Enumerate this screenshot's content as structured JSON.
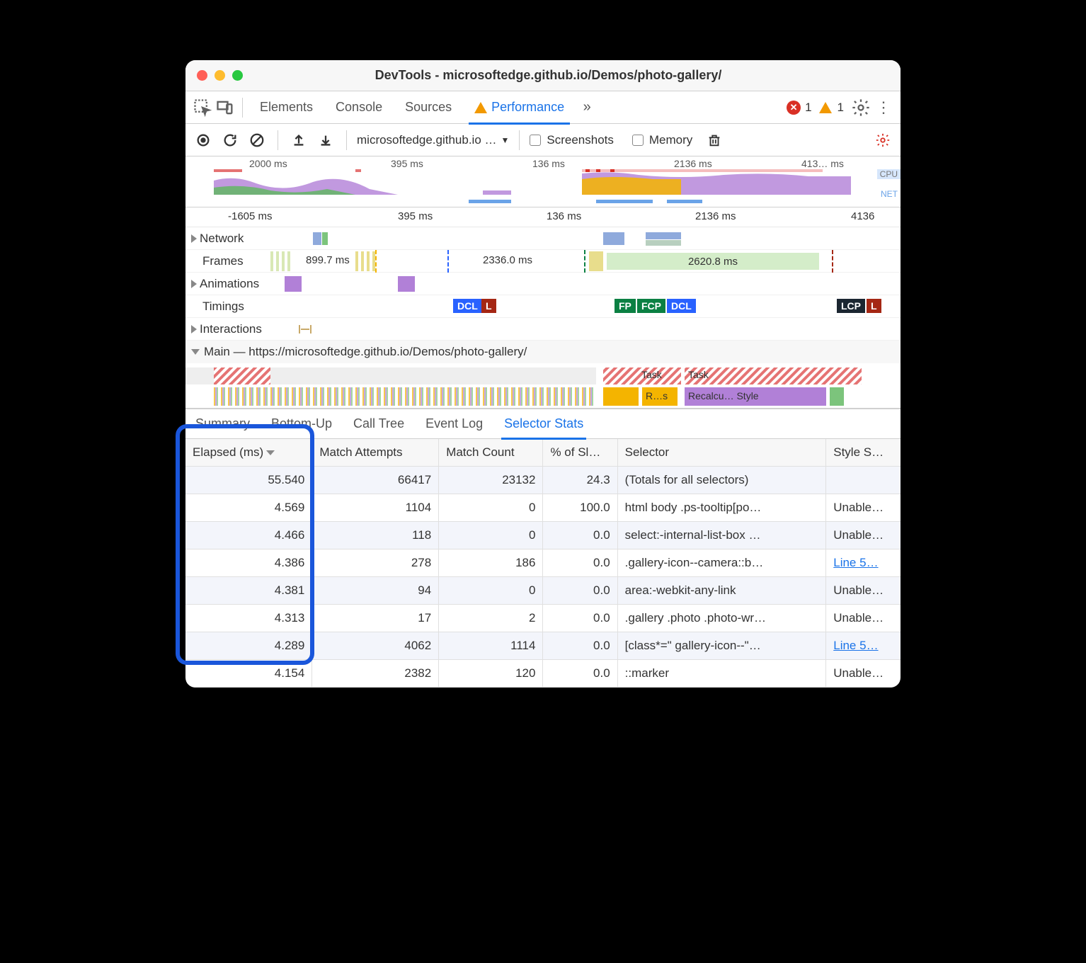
{
  "window": {
    "title": "DevTools - microsoftedge.github.io/Demos/photo-gallery/"
  },
  "tabs": {
    "elements": "Elements",
    "console": "Console",
    "sources": "Sources",
    "performance": "Performance",
    "errors": "1",
    "warnings": "1"
  },
  "toolbar": {
    "url": "microsoftedge.github.io …",
    "screenshots": "Screenshots",
    "memory": "Memory"
  },
  "overview": {
    "ticks": [
      "2000 ms",
      "395 ms",
      "136 ms",
      "2136 ms",
      "413… ms"
    ],
    "cpu_label": "CPU",
    "net_label": "NET"
  },
  "ruler": {
    "ticks": [
      "-1605 ms",
      "395 ms",
      "136 ms",
      "2136 ms",
      "4136"
    ]
  },
  "tracks": {
    "network": "Network",
    "frames": "Frames",
    "frames_vals": [
      "899.7 ms",
      "2336.0 ms",
      "2620.8 ms"
    ],
    "animations": "Animations",
    "timings": "Timings",
    "timing_badges": [
      "DCL",
      "L",
      "FP",
      "FCP",
      "DCL",
      "LCP",
      "L"
    ],
    "interactions": "Interactions",
    "main": "Main — https://microsoftedge.github.io/Demos/photo-gallery/",
    "flame_labels": [
      "Task",
      "Task",
      "R…s",
      "Recalcu… Style"
    ]
  },
  "detail_tabs": {
    "summary": "Summary",
    "bottomup": "Bottom-Up",
    "calltree": "Call Tree",
    "eventlog": "Event Log",
    "selector": "Selector Stats"
  },
  "table": {
    "headers": {
      "elapsed": "Elapsed (ms)",
      "attempts": "Match Attempts",
      "count": "Match Count",
      "pct": "% of Sl…",
      "selector": "Selector",
      "sheet": "Style S…"
    },
    "rows": [
      {
        "elapsed": "55.540",
        "attempts": "66417",
        "count": "23132",
        "pct": "24.3",
        "selector": "(Totals for all selectors)",
        "sheet": ""
      },
      {
        "elapsed": "4.569",
        "attempts": "1104",
        "count": "0",
        "pct": "100.0",
        "selector": "html body .ps-tooltip[po…",
        "sheet": "Unable…"
      },
      {
        "elapsed": "4.466",
        "attempts": "118",
        "count": "0",
        "pct": "0.0",
        "selector": "select:-internal-list-box …",
        "sheet": "Unable…"
      },
      {
        "elapsed": "4.386",
        "attempts": "278",
        "count": "186",
        "pct": "0.0",
        "selector": ".gallery-icon--camera::b…",
        "sheet": "Line 5…",
        "link": true
      },
      {
        "elapsed": "4.381",
        "attempts": "94",
        "count": "0",
        "pct": "0.0",
        "selector": "area:-webkit-any-link",
        "sheet": "Unable…"
      },
      {
        "elapsed": "4.313",
        "attempts": "17",
        "count": "2",
        "pct": "0.0",
        "selector": ".gallery .photo .photo-wr…",
        "sheet": "Unable…"
      },
      {
        "elapsed": "4.289",
        "attempts": "4062",
        "count": "1114",
        "pct": "0.0",
        "selector": "[class*=\" gallery-icon--\"…",
        "sheet": "Line 5…",
        "link": true
      },
      {
        "elapsed": "4.154",
        "attempts": "2382",
        "count": "120",
        "pct": "0.0",
        "selector": "::marker",
        "sheet": "Unable…"
      }
    ]
  },
  "colors": {
    "accent": "#1a73e8",
    "highlight_border": "#1a56db",
    "purple": "#b180d7",
    "green": "#5cb85c",
    "orange": "#f4b400",
    "dcl_blue": "#2962ff",
    "l_red": "#a52714",
    "fp_green": "#0b8043",
    "lcp_dark": "#1b2631",
    "frame_green": "#d4edc9",
    "task_hatch": "#e57373"
  }
}
